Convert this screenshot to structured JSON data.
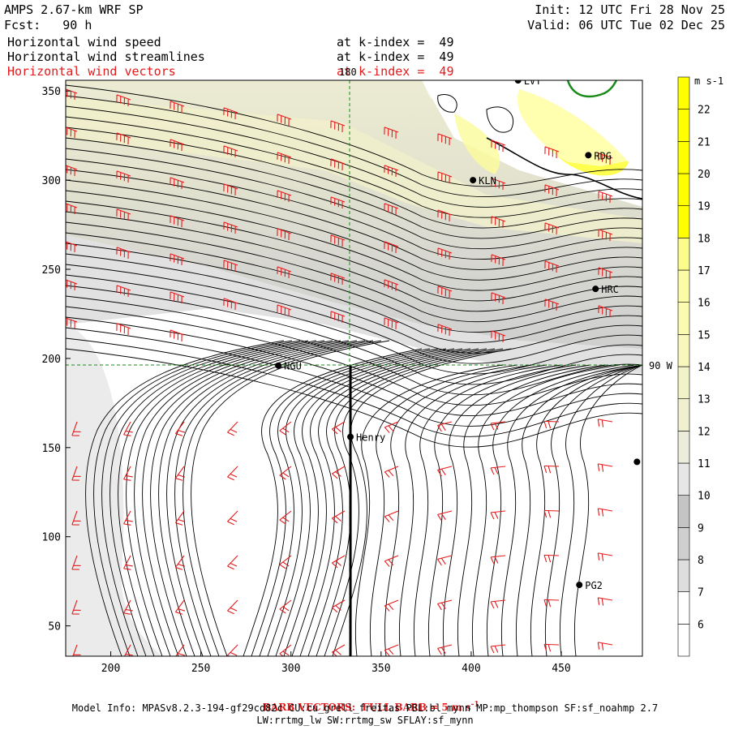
{
  "header": {
    "title": "AMPS 2.67-km WRF SP",
    "forecast": "Fcst:   90 h",
    "init": "Init: 12 UTC Fri 28 Nov 25",
    "valid": "Valid: 06 UTC Tue 02 Dec 25",
    "fields": [
      {
        "label": "Horizontal wind speed",
        "level": "at k-index =  49",
        "color": "#000000"
      },
      {
        "label": "Horizontal wind streamlines",
        "level": "at k-index =  49",
        "color": "#000000"
      },
      {
        "label": "Horizontal wind vectors",
        "level": "at k-index =  49",
        "color": "#e41a1c"
      }
    ]
  },
  "chart_data": {
    "type": "heatmap",
    "x_ticks": [
      200,
      250,
      300,
      350,
      400,
      450
    ],
    "y_ticks": [
      50,
      100,
      150,
      200,
      250,
      300,
      350
    ],
    "xlim": [
      175,
      495
    ],
    "ylim": [
      33,
      356
    ],
    "grid_labels": {
      "meridian": "180",
      "parallel": "90 W"
    },
    "colorbar": {
      "unit": "m s-1",
      "levels": [
        6,
        7,
        8,
        9,
        10,
        11,
        12,
        13,
        14,
        15,
        16,
        17,
        18,
        19,
        20,
        21,
        22
      ],
      "colors": [
        "#ffffff",
        "#ffffff",
        "#dedede",
        "#cfcfcf",
        "#c4c4c4",
        "#e6e6e6",
        "#ececdc",
        "#f0f0d0",
        "#f2f2c8",
        "#f8f8bc",
        "#fafab0",
        "#fcfca6",
        "#fcfc8c",
        "#ffff00",
        "#ffff00",
        "#ffff00",
        "#ffff00",
        "#ffff00"
      ]
    },
    "stations": [
      {
        "name": "LVT",
        "x": 426,
        "y": 356
      },
      {
        "name": "RDG",
        "x": 465,
        "y": 314
      },
      {
        "name": "KLN",
        "x": 401,
        "y": 300
      },
      {
        "name": "HRC",
        "x": 469,
        "y": 239
      },
      {
        "name": "NGU",
        "x": 293,
        "y": 196
      },
      {
        "name": "Henry",
        "x": 333,
        "y": 156
      },
      {
        "name": "PG2",
        "x": 460,
        "y": 73
      },
      {
        "name": "",
        "x": 492,
        "y": 142
      }
    ],
    "transect": {
      "x": 333,
      "y_from": 33,
      "y_to": 196
    }
  },
  "footer": {
    "barb_note": "BARB VECTORS:  FULL BARB = 5 m s",
    "barb_note_sup": "-1",
    "model_info": "Model Info: MPASv8.2.3-194-gf29cd82c CU:cu_grell_freitas PBL:bl_mynn MP:mp_thompson SF:sf_noahmp 2.7",
    "model_info2": "LW:rrtmg_lw SW:rrtmg_sw SFLAY:sf_mynn"
  }
}
